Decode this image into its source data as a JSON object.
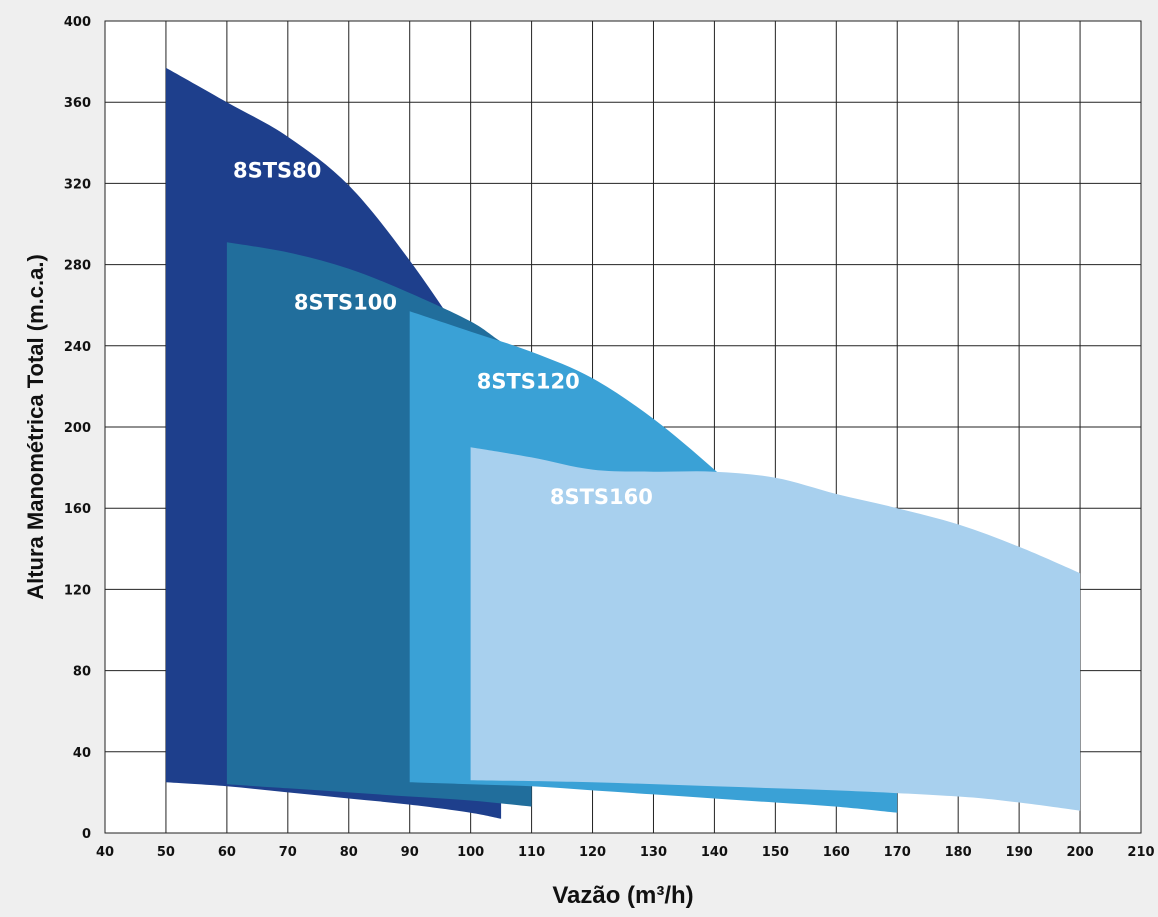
{
  "chart_data": {
    "type": "area",
    "xlabel": "Vazão (m³/h)",
    "ylabel": "Altura Manométrica Total  (m.c.a.)",
    "xlim": [
      40,
      210
    ],
    "ylim": [
      0,
      400
    ],
    "xticks": [
      40,
      50,
      60,
      70,
      80,
      90,
      100,
      110,
      120,
      130,
      140,
      150,
      160,
      170,
      180,
      190,
      200,
      210
    ],
    "yticks": [
      0,
      40,
      80,
      120,
      160,
      200,
      240,
      280,
      320,
      360,
      400
    ],
    "grid": true,
    "series": [
      {
        "name": "8STS80",
        "color": "#1e3f8c",
        "upper": [
          [
            50,
            377
          ],
          [
            60,
            360
          ],
          [
            70,
            343
          ],
          [
            80,
            319
          ],
          [
            90,
            282
          ],
          [
            100,
            238
          ],
          [
            105,
            212
          ]
        ],
        "lower": [
          [
            50,
            25
          ],
          [
            60,
            23
          ],
          [
            70,
            20
          ],
          [
            80,
            17
          ],
          [
            90,
            14
          ],
          [
            100,
            10
          ],
          [
            105,
            7
          ]
        ],
        "label_at": [
          61,
          323
        ]
      },
      {
        "name": "8STS100",
        "color": "#216e9c",
        "upper": [
          [
            60,
            291
          ],
          [
            70,
            286
          ],
          [
            80,
            278
          ],
          [
            90,
            266
          ],
          [
            100,
            252
          ],
          [
            105,
            242
          ],
          [
            110,
            234
          ]
        ],
        "lower": [
          [
            60,
            24
          ],
          [
            70,
            22
          ],
          [
            80,
            20
          ],
          [
            90,
            18
          ],
          [
            100,
            16
          ],
          [
            110,
            13
          ]
        ],
        "label_at": [
          71,
          258
        ]
      },
      {
        "name": "8STS120",
        "color": "#3aa1d6",
        "upper": [
          [
            90,
            257
          ],
          [
            100,
            247
          ],
          [
            110,
            237
          ],
          [
            120,
            224
          ],
          [
            130,
            204
          ],
          [
            140,
            179
          ],
          [
            150,
            152
          ],
          [
            160,
            123
          ],
          [
            170,
            96
          ]
        ],
        "lower": [
          [
            90,
            25
          ],
          [
            100,
            24
          ],
          [
            110,
            23
          ],
          [
            120,
            21
          ],
          [
            130,
            19
          ],
          [
            140,
            17
          ],
          [
            150,
            15
          ],
          [
            160,
            13
          ],
          [
            170,
            10
          ]
        ],
        "label_at": [
          101,
          219
        ]
      },
      {
        "name": "8STS160",
        "color": "#a8d0ee",
        "upper": [
          [
            100,
            190
          ],
          [
            110,
            185
          ],
          [
            120,
            179
          ],
          [
            130,
            178
          ],
          [
            140,
            178
          ],
          [
            150,
            175
          ],
          [
            160,
            167
          ],
          [
            170,
            160
          ],
          [
            180,
            152
          ],
          [
            190,
            141
          ],
          [
            200,
            128
          ]
        ],
        "lower": [
          [
            100,
            26
          ],
          [
            120,
            25
          ],
          [
            140,
            23
          ],
          [
            160,
            21
          ],
          [
            180,
            18
          ],
          [
            190,
            15
          ],
          [
            200,
            11
          ]
        ],
        "label_at": [
          113,
          162
        ]
      }
    ]
  }
}
